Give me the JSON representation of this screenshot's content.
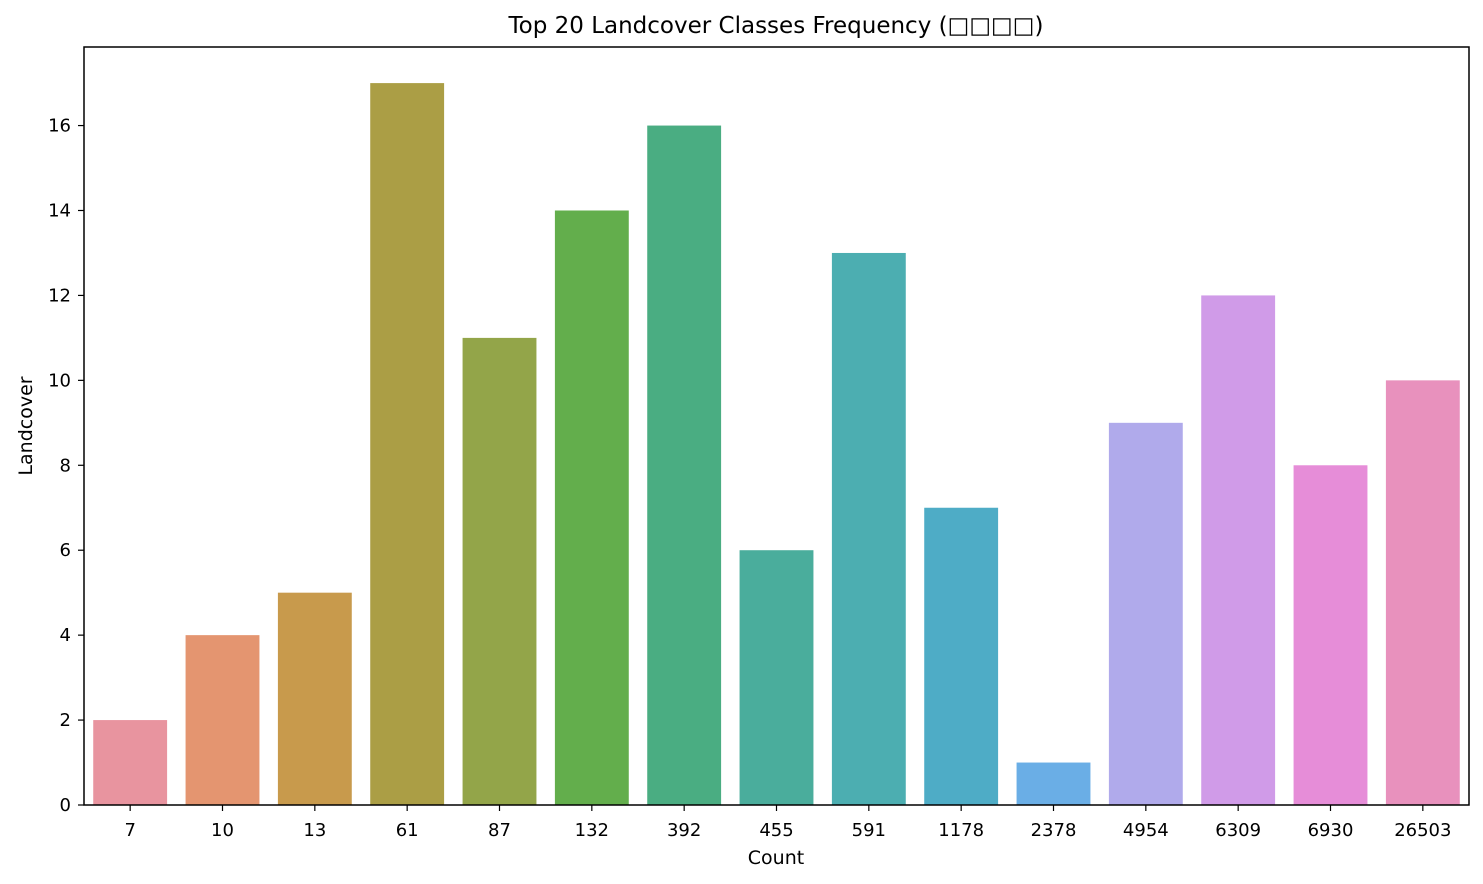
{
  "chart_data": {
    "type": "bar",
    "title": "Top 20 Landcover Classes Frequency (□□□□)",
    "xlabel": "Count",
    "ylabel": "Landcover",
    "categories": [
      "7",
      "10",
      "13",
      "61",
      "87",
      "132",
      "392",
      "455",
      "591",
      "1178",
      "2378",
      "4954",
      "6309",
      "6930",
      "26503"
    ],
    "values": [
      2,
      4,
      5,
      17,
      11,
      14,
      16,
      6,
      13,
      7,
      1,
      9,
      12,
      8,
      10
    ],
    "colors": [
      "#e8949f",
      "#e49570",
      "#c89a4c",
      "#ab9e45",
      "#93a549",
      "#63ae4c",
      "#4aad82",
      "#4aad9c",
      "#4caeb1",
      "#4eacc6",
      "#6aaee6",
      "#b0aaeb",
      "#d09be8",
      "#e68dd8",
      "#e891bd"
    ],
    "ylim": [
      0,
      17.85
    ],
    "yticks": [
      0,
      2,
      4,
      6,
      8,
      10,
      12,
      14,
      16
    ],
    "grid": false,
    "legend": "none"
  }
}
